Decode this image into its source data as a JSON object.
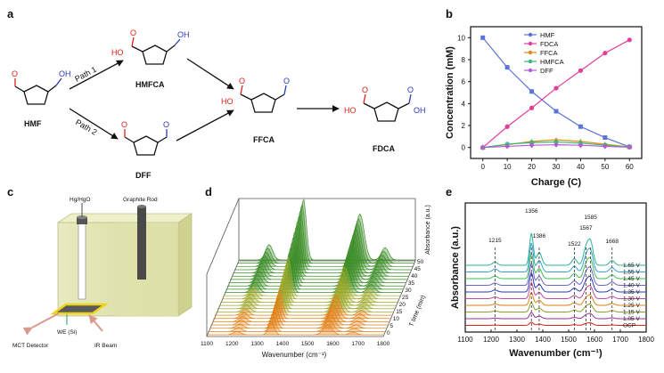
{
  "panels": {
    "a": {
      "label": "a",
      "compounds": [
        "HMF",
        "HMFCA",
        "DFF",
        "FFCA",
        "FDCA"
      ],
      "paths": [
        "Path 1",
        "Path 2"
      ],
      "atoms": {
        "o": "O",
        "oh": "OH",
        "ho": "HO"
      }
    },
    "b": {
      "label": "b"
    },
    "c": {
      "label": "c",
      "labels": [
        "Hg/HgO",
        "Graphite Rod",
        "WE (Si)",
        "MCT Detector",
        "IR Beam"
      ]
    },
    "d": {
      "label": "d",
      "xlabel": "Wavenumber (cm⁻¹)",
      "xticks": [
        "1100",
        "1200",
        "1300",
        "1400",
        "1500",
        "1600",
        "1700",
        "1800"
      ],
      "ylabel": "T time (min)",
      "yticks": [
        "0",
        "5",
        "10",
        "15",
        "20",
        "25",
        "30",
        "35",
        "40",
        "45",
        "50"
      ],
      "zlabel": "Absorbance (a.u.)"
    },
    "e": {
      "label": "e",
      "peaks": [
        "1215",
        "1356",
        "1386",
        "1522",
        "1567",
        "1585",
        "1668"
      ]
    }
  },
  "colors": {
    "hmf": "#5b74d6",
    "fdca": "#e33d9a",
    "ffca": "#e08a16",
    "hmfca": "#39b87b",
    "dff": "#b45ad6",
    "red": "#e0201b",
    "blue": "#2a3ab8",
    "green": "#3e8e2a",
    "orange": "#e27f15"
  },
  "icons": [
    "furan-ring",
    "reaction-arrow",
    "electrochemical-cell"
  ],
  "chart_data": [
    {
      "type": "line",
      "xlabel": "Charge (C)",
      "ylabel": "Concentration (mM)",
      "x": [
        0,
        10,
        20,
        30,
        40,
        50,
        60
      ],
      "xlim": [
        -5,
        65
      ],
      "ylim": [
        -1,
        11
      ],
      "xticks": [
        "0",
        "10",
        "20",
        "30",
        "40",
        "50",
        "60"
      ],
      "yticks": [
        "0",
        "2",
        "4",
        "6",
        "8",
        "10"
      ],
      "legend_position": "top-left",
      "series": [
        {
          "name": "HMF",
          "values": [
            10,
            7.3,
            5.1,
            3.3,
            1.9,
            0.9,
            0.05
          ],
          "color": "#5b74d6",
          "marker": "square"
        },
        {
          "name": "FDCA",
          "values": [
            0,
            1.9,
            3.6,
            5.4,
            7.0,
            8.6,
            9.8
          ],
          "color": "#e33d9a",
          "marker": "circle"
        },
        {
          "name": "FFCA",
          "values": [
            0,
            0.25,
            0.55,
            0.7,
            0.55,
            0.3,
            0.05
          ],
          "color": "#e08a16",
          "marker": "triangle"
        },
        {
          "name": "HMFCA",
          "values": [
            0,
            0.3,
            0.45,
            0.5,
            0.4,
            0.2,
            0.05
          ],
          "color": "#39b87b",
          "marker": "star"
        },
        {
          "name": "DFF",
          "values": [
            0,
            0.1,
            0.2,
            0.25,
            0.2,
            0.1,
            0.02
          ],
          "color": "#b45ad6",
          "marker": "diamond"
        }
      ]
    },
    {
      "type": "line",
      "xlabel": "Wavenumber (cm⁻¹)",
      "ylabel": "Absorbance (a.u.)",
      "xlim": [
        1100,
        1800
      ],
      "xticks": [
        "1100",
        "1200",
        "1300",
        "1400",
        "1500",
        "1600",
        "1700",
        "1800"
      ],
      "peaks": [
        1215,
        1356,
        1386,
        1522,
        1567,
        1585,
        1668
      ],
      "series": [
        {
          "name": "1.65 V",
          "color": "#2fb29a"
        },
        {
          "name": "1.55 V",
          "color": "#3a9fd0"
        },
        {
          "name": "1.45 V",
          "color": "#3dbd55"
        },
        {
          "name": "1.40 V",
          "color": "#6a64c8"
        },
        {
          "name": "1.35 V",
          "color": "#2a3ab8"
        },
        {
          "name": "1.30 V",
          "color": "#c24a9a"
        },
        {
          "name": "1.25 V",
          "color": "#e27f15"
        },
        {
          "name": "1.15 V",
          "color": "#8e9a2a"
        },
        {
          "name": "1.05 V",
          "color": "#9a2f9a"
        },
        {
          "name": "OCP",
          "color": "#e0201b"
        }
      ]
    }
  ]
}
